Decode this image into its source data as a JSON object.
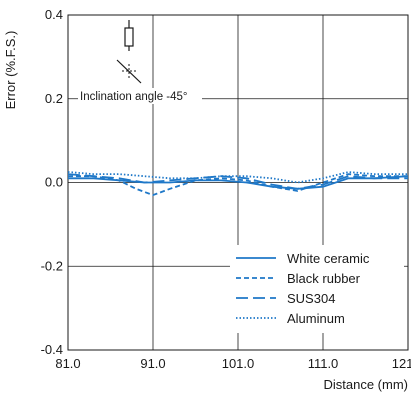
{
  "chart_data": {
    "type": "line",
    "title": "",
    "xlabel": "Distance (mm)",
    "ylabel": "Error (%.F.S.)",
    "xlim": [
      81.0,
      121.0
    ],
    "ylim": [
      -0.4,
      0.4
    ],
    "xticks": [
      81.0,
      91.0,
      101.0,
      111.0,
      121.0
    ],
    "xtick_labels": [
      "81.0",
      "91.0",
      "101.0",
      "111.0",
      "121.0"
    ],
    "yticks": [
      -0.4,
      -0.2,
      0.0,
      0.2,
      0.4
    ],
    "ytick_labels": [
      "-0.4",
      "-0.2",
      "0.0",
      "0.2",
      "0.4"
    ],
    "grid": true,
    "legend_position": "bottom-right",
    "line_color": "#1f78c8",
    "annotation": "Inclination angle -45°",
    "series": [
      {
        "name": "White ceramic",
        "style": "solid",
        "x": [
          81,
          84,
          87,
          90,
          93,
          96,
          99,
          102,
          105,
          108,
          111,
          114,
          117,
          121
        ],
        "y": [
          0.01,
          0.01,
          0.005,
          0.0,
          0.0,
          0.005,
          0.005,
          0.0,
          -0.01,
          -0.015,
          -0.01,
          0.01,
          0.01,
          0.015
        ]
      },
      {
        "name": "Black rubber",
        "style": "dashed",
        "x": [
          81,
          84,
          87,
          89,
          91,
          93,
          96,
          99,
          102,
          105,
          108,
          111,
          114,
          117,
          121
        ],
        "y": [
          0.015,
          0.015,
          0.005,
          -0.015,
          -0.03,
          -0.015,
          0.005,
          0.01,
          0.005,
          -0.01,
          -0.02,
          0.0,
          0.02,
          0.015,
          0.015
        ]
      },
      {
        "name": "SUS304",
        "style": "longdash",
        "x": [
          81,
          84,
          87,
          90,
          93,
          96,
          99,
          102,
          105,
          108,
          111,
          114,
          117,
          121
        ],
        "y": [
          0.02,
          0.015,
          0.01,
          0.0,
          0.005,
          0.01,
          0.015,
          0.01,
          -0.005,
          -0.015,
          -0.005,
          0.015,
          0.01,
          0.01
        ]
      },
      {
        "name": "Aluminum",
        "style": "dotted",
        "x": [
          81,
          84,
          87,
          90,
          93,
          96,
          99,
          102,
          105,
          108,
          111,
          114,
          117,
          121
        ],
        "y": [
          0.025,
          0.02,
          0.02,
          0.015,
          0.01,
          0.01,
          0.015,
          0.015,
          0.01,
          0.0,
          0.01,
          0.025,
          0.02,
          0.02
        ]
      }
    ]
  }
}
